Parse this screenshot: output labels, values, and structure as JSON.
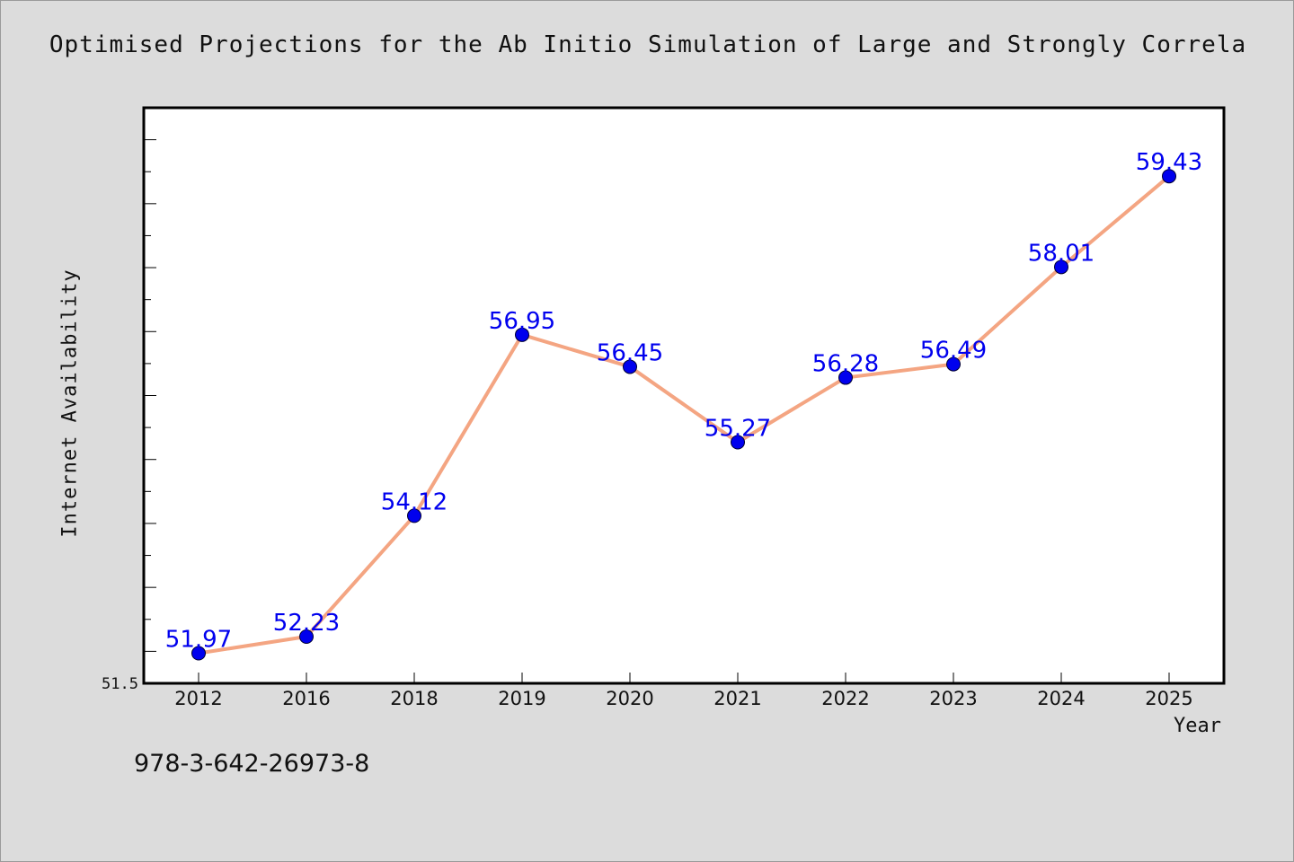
{
  "chart_data": {
    "type": "line",
    "title": "Optimised Projections for the Ab Initio Simulation of Large and Strongly Correla",
    "xlabel": "Year",
    "ylabel": "Internet Availability",
    "categories": [
      "2012",
      "2016",
      "2018",
      "2019",
      "2020",
      "2021",
      "2022",
      "2023",
      "2024",
      "2025"
    ],
    "series": [
      {
        "values": [
          51.97,
          52.23,
          54.12,
          56.95,
          56.45,
          55.27,
          56.28,
          56.49,
          58.01,
          59.43
        ],
        "data_labels": [
          "51.97",
          "52.23",
          "54.12",
          "56.95",
          "56.45",
          "55.27",
          "56.28",
          "56.49",
          "58.01",
          "59.43"
        ]
      }
    ],
    "ylim": [
      51.5,
      60.5
    ],
    "y_tick_labels": [
      "51.5"
    ],
    "grid": false,
    "legend": "none",
    "colors": {
      "line": "#f4a582",
      "marker": "#0000ee",
      "data_label": "#0000ee",
      "background": "#dcdcdc",
      "plot_background": "#ffffff"
    }
  },
  "footer_text": "978-3-642-26973-8"
}
